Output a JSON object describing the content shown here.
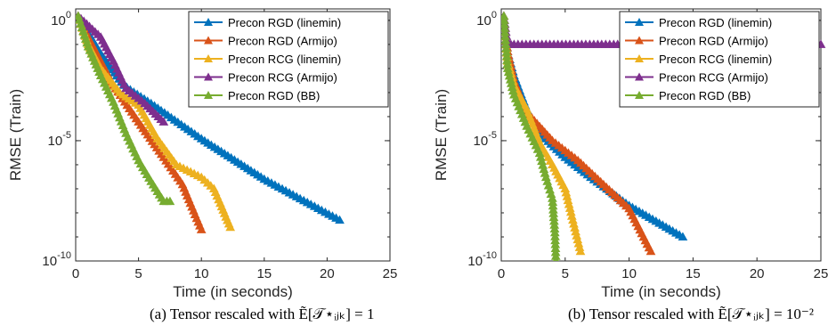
{
  "colors": {
    "blue": "#0072BD",
    "orange": "#D95319",
    "yellow": "#EDB120",
    "purple": "#7E2F8E",
    "green": "#77AC30"
  },
  "chart_data": [
    {
      "type": "line",
      "marker": "triangle",
      "xlabel": "Time (in seconds)",
      "ylabel": "RMSE (Train)",
      "yscale": "log",
      "xlim": [
        0,
        25
      ],
      "ylim": [
        1e-10,
        3
      ],
      "xticks": [
        0,
        5,
        10,
        15,
        20,
        25
      ],
      "yticks": [
        {
          "value": 1e-10,
          "base": "10",
          "exp": "-10"
        },
        {
          "value": 1e-05,
          "base": "10",
          "exp": "-5"
        },
        {
          "value": 1,
          "base": "10",
          "exp": "0"
        }
      ],
      "grid": false,
      "legend_position": "top-right",
      "caption": {
        "label": "(a)",
        "text": "Tensor rescaled with",
        "math": "Ẽ[𝒯⋆ᵢⱼₖ] = 1"
      },
      "series": [
        {
          "name": "Precon RGD (linemin)",
          "color": "blue",
          "points": [
            [
              0.2,
              1.5
            ],
            [
              1,
              0.3
            ],
            [
              2,
              0.04
            ],
            [
              3.8,
              0.002
            ],
            [
              6,
              0.00035
            ],
            [
              10,
              1.2e-05
            ],
            [
              15,
              2.5e-07
            ],
            [
              21,
              5e-09
            ]
          ]
        },
        {
          "name": "Precon RGD (Armijo)",
          "color": "orange",
          "points": [
            [
              0.2,
              1.5
            ],
            [
              1,
              0.2
            ],
            [
              2,
              0.02
            ],
            [
              3,
              0.002
            ],
            [
              5,
              6e-05
            ],
            [
              7,
              2e-06
            ],
            [
              8.5,
              1.5e-07
            ],
            [
              10,
              2e-09
            ]
          ]
        },
        {
          "name": "Precon RCG (linemin)",
          "color": "yellow",
          "points": [
            [
              0.2,
              1.5
            ],
            [
              1,
              0.1
            ],
            [
              2,
              0.01
            ],
            [
              3.5,
              0.001
            ],
            [
              5,
              0.0003
            ],
            [
              6.5,
              1.2e-05
            ],
            [
              8,
              1e-06
            ],
            [
              10,
              3e-07
            ],
            [
              11,
              1e-07
            ],
            [
              11.5,
              2.5e-08
            ],
            [
              12.3,
              2.5e-09
            ]
          ]
        },
        {
          "name": "Precon RCG (Armijo)",
          "color": "purple",
          "points": [
            [
              0.2,
              1.5
            ],
            [
              2,
              0.2
            ],
            [
              3,
              0.02
            ],
            [
              4,
              0.0015
            ],
            [
              5.5,
              0.00035
            ],
            [
              7,
              6e-05
            ]
          ]
        },
        {
          "name": "Precon RGD (BB)",
          "color": "green",
          "points": [
            [
              0.2,
              1.5
            ],
            [
              1,
              0.08
            ],
            [
              2,
              0.005
            ],
            [
              3,
              0.0004
            ],
            [
              4,
              2e-05
            ],
            [
              5,
              1.5e-06
            ],
            [
              6,
              2e-07
            ],
            [
              7,
              3e-08
            ],
            [
              7.5,
              3e-08
            ]
          ]
        }
      ]
    },
    {
      "type": "line",
      "marker": "triangle",
      "xlabel": "Time (in seconds)",
      "ylabel": "RMSE (Train)",
      "yscale": "log",
      "xlim": [
        0,
        25
      ],
      "ylim": [
        1e-10,
        3
      ],
      "xticks": [
        0,
        5,
        10,
        15,
        20,
        25
      ],
      "yticks": [
        {
          "value": 1e-10,
          "base": "10",
          "exp": "-10"
        },
        {
          "value": 1e-05,
          "base": "10",
          "exp": "-5"
        },
        {
          "value": 1,
          "base": "10",
          "exp": "0"
        }
      ],
      "grid": false,
      "legend_position": "top-right",
      "caption": {
        "label": "(b)",
        "text": "Tensor rescaled with",
        "math": "Ẽ[𝒯⋆ᵢⱼₖ] = 10⁻²"
      },
      "series": [
        {
          "name": "Precon RGD (linemin)",
          "color": "blue",
          "points": [
            [
              0.2,
              1.5
            ],
            [
              0.5,
              0.05
            ],
            [
              1,
              0.005
            ],
            [
              2,
              0.0002
            ],
            [
              3,
              2e-05
            ],
            [
              5,
              2e-06
            ],
            [
              7,
              3e-07
            ],
            [
              10,
              2e-08
            ],
            [
              14.2,
              1e-09
            ]
          ]
        },
        {
          "name": "Precon RGD (Armijo)",
          "color": "orange",
          "points": [
            [
              0.2,
              1.5
            ],
            [
              0.5,
              0.05
            ],
            [
              1,
              0.003
            ],
            [
              2,
              0.00015
            ],
            [
              4,
              1e-05
            ],
            [
              6,
              1.5e-06
            ],
            [
              8,
              1.5e-07
            ],
            [
              10,
              1.5e-08
            ],
            [
              11.7,
              2.5e-10
            ]
          ]
        },
        {
          "name": "Precon RCG (linemin)",
          "color": "yellow",
          "points": [
            [
              0.2,
              1.5
            ],
            [
              0.5,
              0.02
            ],
            [
              1,
              0.002
            ],
            [
              2,
              0.0002
            ],
            [
              3,
              8e-06
            ],
            [
              4,
              1e-06
            ],
            [
              5,
              1e-07
            ],
            [
              6.2,
              2.5e-10
            ]
          ]
        },
        {
          "name": "Precon RCG (Armijo)",
          "color": "purple",
          "points": [
            [
              0.2,
              1.5
            ],
            [
              0.5,
              0.1
            ],
            [
              1,
              0.1
            ],
            [
              25,
              0.1
            ]
          ]
        },
        {
          "name": "Precon RGD (BB)",
          "color": "green",
          "points": [
            [
              0.2,
              1.5
            ],
            [
              0.5,
              0.01
            ],
            [
              1,
              0.0008
            ],
            [
              2,
              4e-05
            ],
            [
              3,
              3e-06
            ],
            [
              3.5,
              3e-07
            ],
            [
              4,
              4e-08
            ],
            [
              4.2,
              1.5e-09
            ],
            [
              4.3,
              5e-11
            ]
          ]
        }
      ]
    }
  ]
}
